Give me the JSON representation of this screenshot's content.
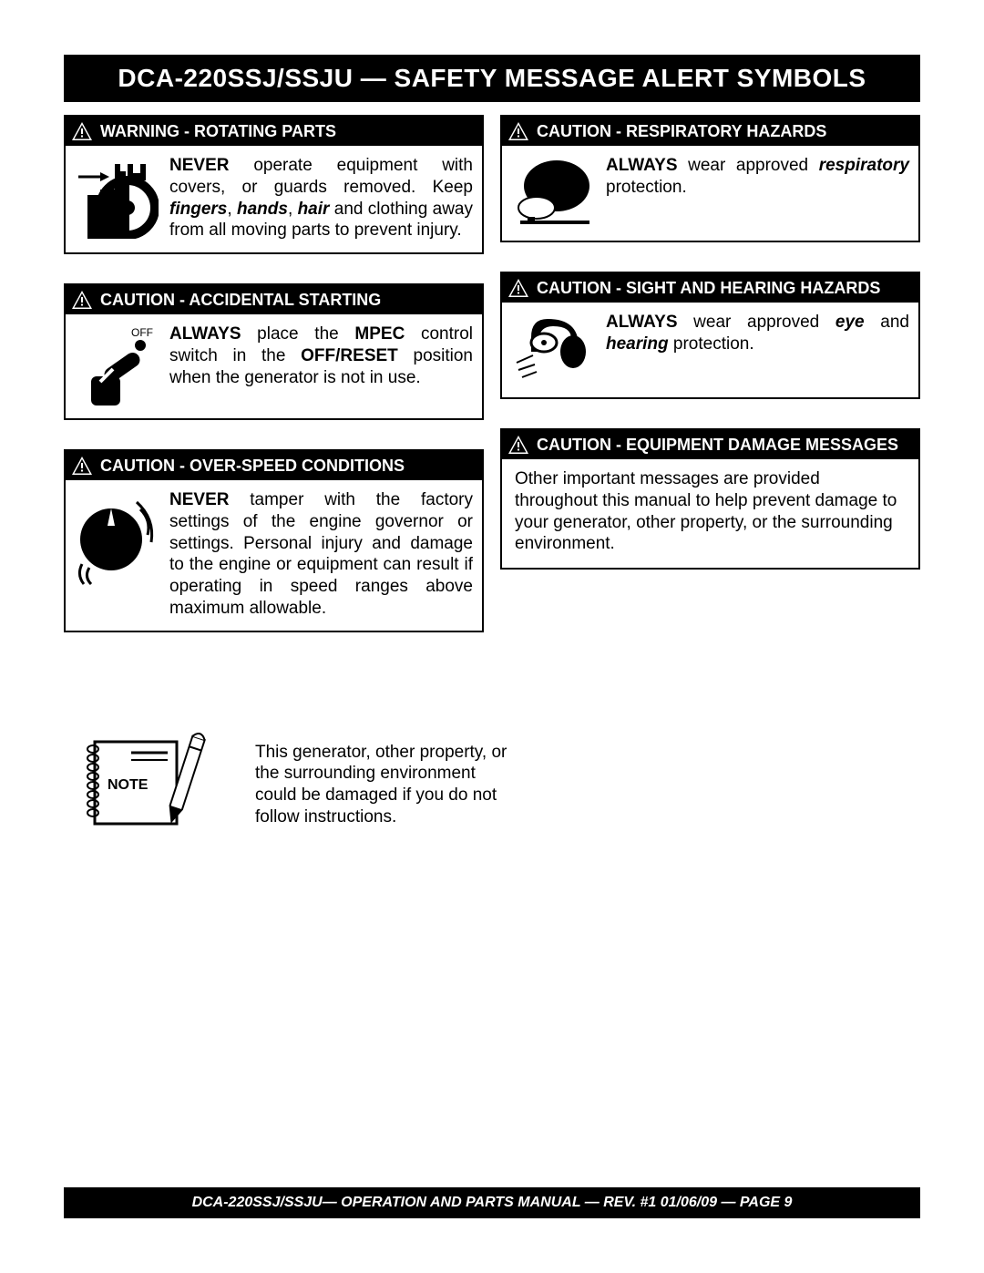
{
  "colors": {
    "black": "#000000",
    "white": "#ffffff"
  },
  "page": {
    "title": "DCA-220SSJ/SSJU — SAFETY MESSAGE ALERT SYMBOLS",
    "footer": "DCA-220SSJ/SSJU— OPERATION AND PARTS MANUAL — REV. #1  01/06/09 — PAGE 9"
  },
  "left": [
    {
      "header": "WARNING - ROTATING PARTS",
      "icon": "rotating-parts",
      "text_html": "<b>NEVER</b> operate equipment with covers, or guards removed. Keep <b><i>fingers</i></b>, <b><i>hands</i></b>, <b><i>hair</i></b> and clothing away from all moving parts to prevent injury."
    },
    {
      "header": "CAUTION - ACCIDENTAL STARTING",
      "icon": "switch-off",
      "text_html": "<b>ALWAYS</b> place the <b>MPEC</b> control switch in the <b>OFF/RESET</b> position when the generator is not in use."
    },
    {
      "header": "CAUTION - OVER-SPEED CONDITIONS",
      "icon": "overspeed",
      "text_html": "<b>NEVER</b> tamper with the factory settings of the engine governor or settings. Personal injury and damage to the engine or equipment can result if operating in speed ranges above maximum allowable."
    }
  ],
  "right": [
    {
      "header": "CAUTION - RESPIRATORY HAZARDS",
      "icon": "respirator",
      "text_html": "<b>ALWAYS</b> wear approved <b><i>respiratory</i></b> protection."
    },
    {
      "header": "CAUTION - SIGHT AND HEARING HAZARDS",
      "icon": "sight-hearing",
      "text_html": "<b>ALWAYS</b> wear approved <b><i>eye</i></b> and <b><i>hearing</i></b> protection."
    },
    {
      "header": "CAUTION - EQUIPMENT DAMAGE MESSAGES",
      "icon": null,
      "text_html": "Other important messages are provided throughout this manual to help prevent damage to your generator, other property, or the surrounding environment."
    }
  ],
  "note": {
    "label": "NOTE",
    "text": "This generator, other property, or the surrounding environment could be damaged if you do not follow instructions."
  }
}
